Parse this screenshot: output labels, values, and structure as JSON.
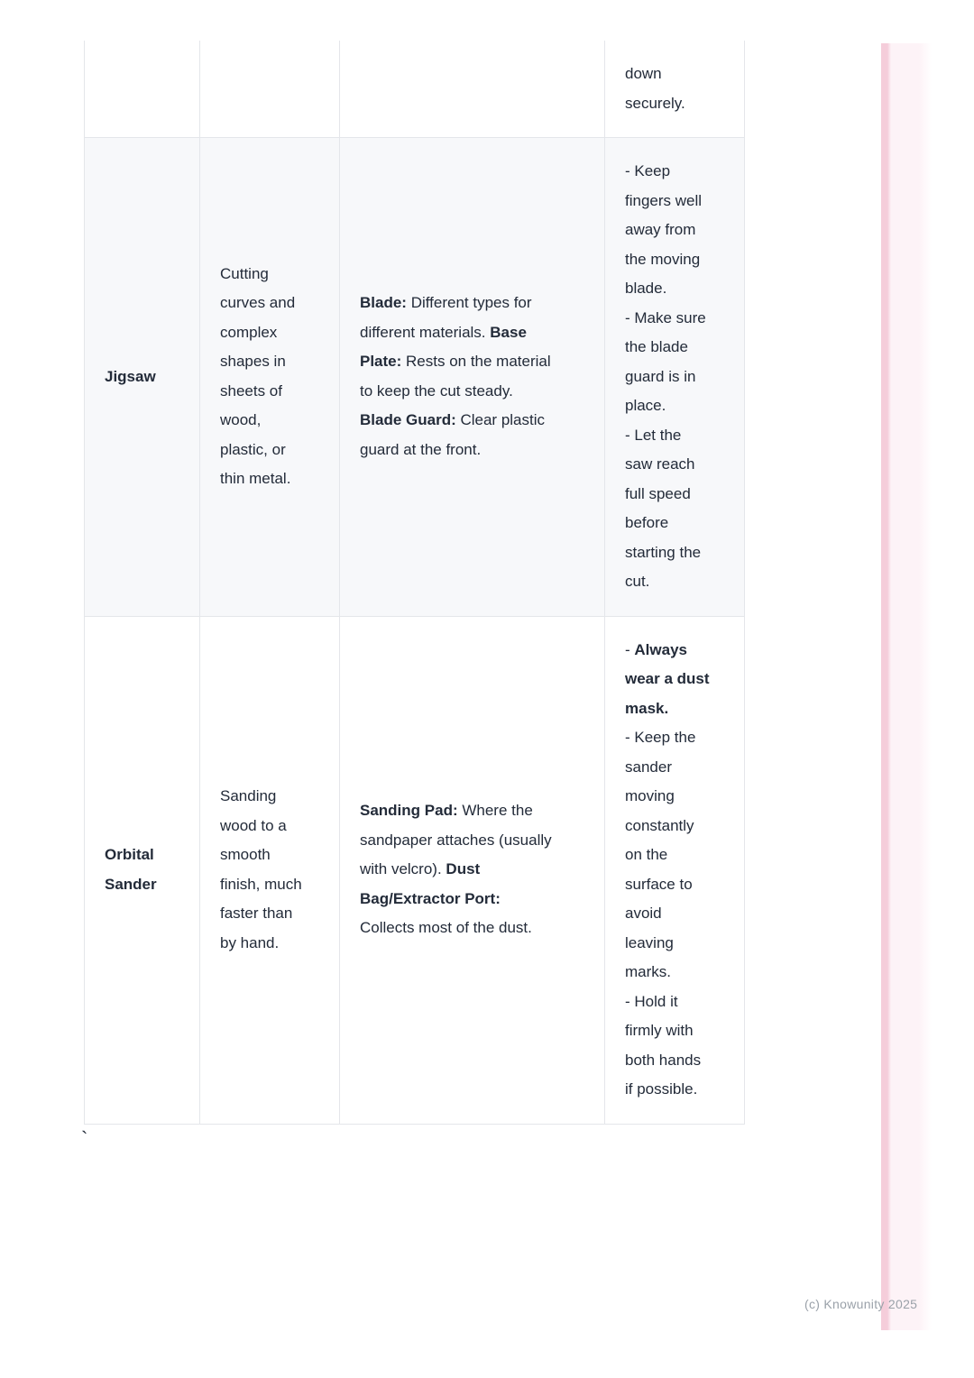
{
  "page": {
    "watermark": "(c) Knowunity 2025",
    "stray_char": "`",
    "colors": {
      "text": "#232b39",
      "table_border": "#e4e6ea",
      "shaded_row_bg": "#f7f8fa",
      "watermark_text": "#9aa1a9",
      "accent_stripe_edge": "#f5cdda",
      "accent_stripe_fill": "#fdf3f7"
    }
  },
  "table": {
    "column_keys": [
      "tool",
      "use",
      "parts",
      "safety"
    ],
    "rows": [
      {
        "partial": true,
        "cells": {
          "tool": [],
          "use": [],
          "parts": [],
          "safety": [
            {
              "text": "down\nsecurely.",
              "bold": false
            }
          ]
        }
      },
      {
        "partial": false,
        "cells": {
          "tool": [
            {
              "text": "Jigsaw",
              "bold": true
            }
          ],
          "use": [
            {
              "text": "Cutting\ncurves and\ncomplex\nshapes in\nsheets of\nwood,\nplastic, or\nthin metal.",
              "bold": false
            }
          ],
          "parts": [
            {
              "text": "Blade:",
              "bold": true
            },
            {
              "text": " Different types for\ndifferent materials. ",
              "bold": false
            },
            {
              "text": "Base\nPlate:",
              "bold": true
            },
            {
              "text": " Rests on the material\nto keep the cut steady.\n",
              "bold": false
            },
            {
              "text": "Blade Guard:",
              "bold": true
            },
            {
              "text": " Clear plastic\nguard at the front.",
              "bold": false
            }
          ],
          "safety": [
            {
              "text": "- Keep\nfingers well\naway from\nthe moving\nblade.\n- Make sure\nthe blade\nguard is in\nplace.\n- Let the\nsaw reach\nfull speed\nbefore\nstarting the\ncut.",
              "bold": false
            }
          ]
        }
      },
      {
        "partial": false,
        "cells": {
          "tool": [
            {
              "text": "Orbital\nSander",
              "bold": true
            }
          ],
          "use": [
            {
              "text": "Sanding\nwood to a\nsmooth\nfinish, much\nfaster than\nby hand.",
              "bold": false
            }
          ],
          "parts": [
            {
              "text": "Sanding Pad:",
              "bold": true
            },
            {
              "text": " Where the\nsandpaper attaches (usually\nwith velcro). ",
              "bold": false
            },
            {
              "text": "Dust\nBag/Extractor Port:",
              "bold": true
            },
            {
              "text": "\nCollects most of the dust.",
              "bold": false
            }
          ],
          "safety": [
            {
              "text": "- ",
              "bold": false
            },
            {
              "text": "Always\nwear a dust\nmask.",
              "bold": true
            },
            {
              "text": "\n- Keep the\nsander\nmoving\nconstantly\non the\nsurface to\navoid\nleaving\nmarks.\n- Hold it\nfirmly with\nboth hands\nif possible.",
              "bold": false
            }
          ]
        }
      }
    ]
  }
}
